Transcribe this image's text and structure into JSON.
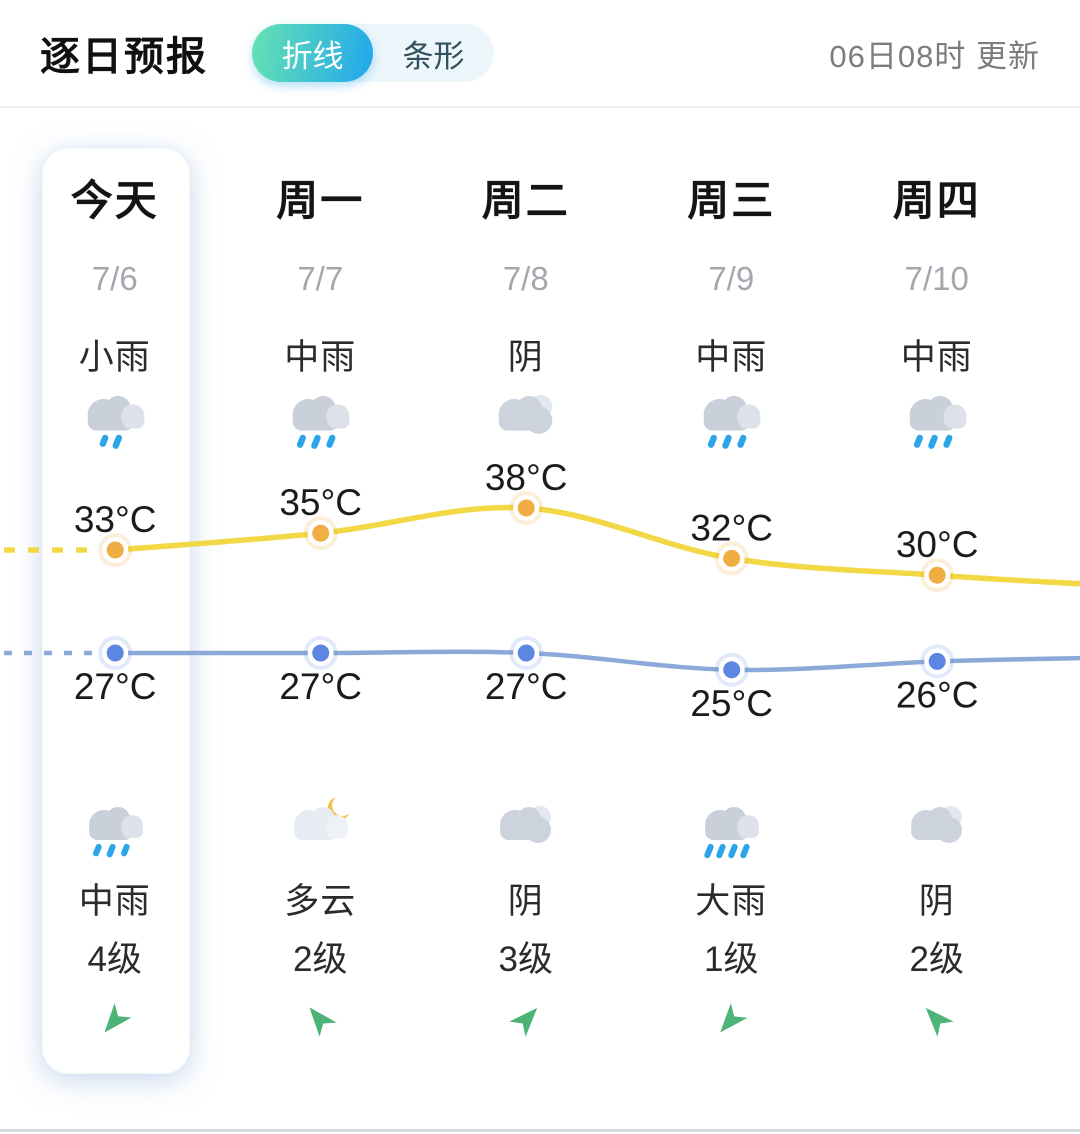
{
  "header": {
    "title": "逐日预报",
    "toggle": {
      "line_label": "折线",
      "bar_label": "条形",
      "selected": "折线"
    },
    "updated": "06日08时 更新"
  },
  "chart_data": {
    "type": "line",
    "categories": [
      "今天",
      "周一",
      "周二",
      "周三",
      "周四"
    ],
    "dates": [
      "7/6",
      "7/7",
      "7/8",
      "7/9",
      "7/10"
    ],
    "series": [
      {
        "name": "high",
        "unit": "°C",
        "values": [
          33,
          35,
          38,
          32,
          30
        ],
        "line_color": "#f2d844",
        "marker_color": "#f0ae42"
      },
      {
        "name": "low",
        "unit": "°C",
        "values": [
          27,
          27,
          27,
          25,
          26
        ],
        "line_color": "#8caad9",
        "marker_color": "#5d86e3"
      }
    ],
    "day_weather": [
      "小雨",
      "中雨",
      "阴",
      "中雨",
      "中雨"
    ],
    "day_icons": [
      "cloud-rain-light",
      "cloud-rain-moderate",
      "overcast-cloud",
      "cloud-rain-moderate",
      "cloud-rain-moderate"
    ],
    "night_weather": [
      "中雨",
      "多云",
      "阴",
      "大雨",
      "阴"
    ],
    "night_icons": [
      "cloud-rain-moderate",
      "cloud-moon",
      "overcast-cloud",
      "cloud-rain-heavy",
      "overcast-cloud"
    ],
    "wind_levels": [
      "4级",
      "2级",
      "3级",
      "1级",
      "2级"
    ],
    "wind_bearings_deg": [
      220,
      320,
      43,
      221,
      317
    ],
    "grid": false,
    "legend": "none"
  },
  "colors": {
    "accent_gradient_start": "#66e2b2",
    "accent_gradient_end": "#21a7ec",
    "high_line": "#f2d844",
    "high_marker": "#f0ae42",
    "low_line": "#8caad9",
    "low_marker": "#5d86e3",
    "rain_drop": "#2ba4e8",
    "wind_arrow": "#4eb377"
  }
}
